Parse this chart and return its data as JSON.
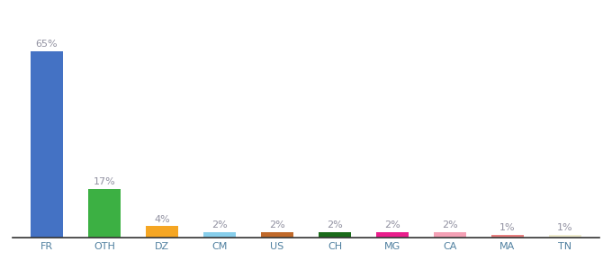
{
  "categories": [
    "FR",
    "OTH",
    "DZ",
    "CM",
    "US",
    "CH",
    "MG",
    "CA",
    "MA",
    "TN"
  ],
  "values": [
    65,
    17,
    4,
    2,
    2,
    2,
    2,
    2,
    1,
    1
  ],
  "bar_colors": [
    "#4472c4",
    "#3cb043",
    "#f5a623",
    "#87ceeb",
    "#c0692a",
    "#1a6b1a",
    "#e91e8c",
    "#f4a0b5",
    "#e88080",
    "#f0edd0"
  ],
  "label_color": "#9090a0",
  "label_fontsize": 8,
  "bar_width": 0.55,
  "background_color": "#ffffff",
  "axis_line_color": "#333333",
  "tick_fontsize": 8,
  "tick_color": "#5080a0",
  "ylim": [
    0,
    78
  ]
}
